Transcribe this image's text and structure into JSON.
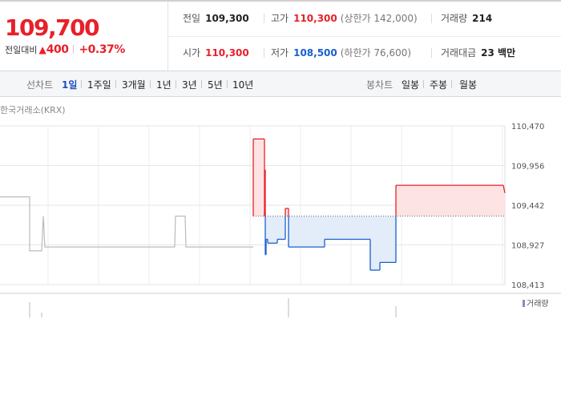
{
  "quote": {
    "price": "109,700",
    "change_label": "전일대비",
    "change_arrow": "▲",
    "change_value": "400",
    "change_pct": "+0.37%"
  },
  "stats": {
    "prev_close": {
      "label": "전일",
      "value": "109,300"
    },
    "high": {
      "label": "고가",
      "value": "110,300",
      "limit": "(상한가 142,000)"
    },
    "volume": {
      "label": "거래량",
      "value": "214"
    },
    "open": {
      "label": "시가",
      "value": "110,300"
    },
    "low": {
      "label": "저가",
      "value": "108,500",
      "limit": "(하한가 76,600)"
    },
    "turnover": {
      "label": "거래대금",
      "value": "23 백만"
    }
  },
  "line_tabs": {
    "label": "선차트",
    "items": [
      "1일",
      "1주일",
      "3개월",
      "1년",
      "3년",
      "5년",
      "10년"
    ],
    "active": "1일"
  },
  "candle_tabs": {
    "label": "봉차트",
    "items": [
      "일봉",
      "주봉",
      "월봉"
    ]
  },
  "chart_data": {
    "type": "line",
    "source_label": "한국거래소(KRX)",
    "volume_legend": "거래량",
    "y_ticks": [
      "110,470",
      "109,956",
      "109,442",
      "108,927",
      "108,413"
    ],
    "ylim": [
      108413,
      110470
    ],
    "xlim": [
      0,
      630
    ],
    "baseline": 109300,
    "grid": true,
    "colors": {
      "up": "#e8202a",
      "down": "#1a5fd0",
      "up_fill": "#fde3e3",
      "down_fill": "#e3ecf9",
      "previous": "#bbbbbb"
    },
    "previous_series": {
      "x": [
        0,
        37,
        37,
        52,
        54,
        56,
        58,
        218,
        219,
        231,
        232,
        316
      ],
      "y": [
        109550,
        109550,
        108850,
        108850,
        109300,
        108900,
        108900,
        108900,
        109300,
        109300,
        108900,
        108900
      ]
    },
    "series": {
      "x": [
        316,
        316,
        330,
        330,
        331,
        331,
        332,
        332,
        334,
        334,
        346,
        346,
        356,
        356,
        360,
        360,
        405,
        405,
        462,
        462,
        474,
        474,
        494,
        494,
        495,
        495,
        628,
        630
      ],
      "y": [
        109300,
        110300,
        110300,
        109300,
        109900,
        108800,
        108800,
        109000,
        109000,
        108950,
        108950,
        109000,
        109000,
        109400,
        109400,
        108900,
        108900,
        109000,
        109000,
        108600,
        108600,
        108700,
        108700,
        109700,
        109700,
        109700,
        109700,
        109600
      ]
    }
  }
}
